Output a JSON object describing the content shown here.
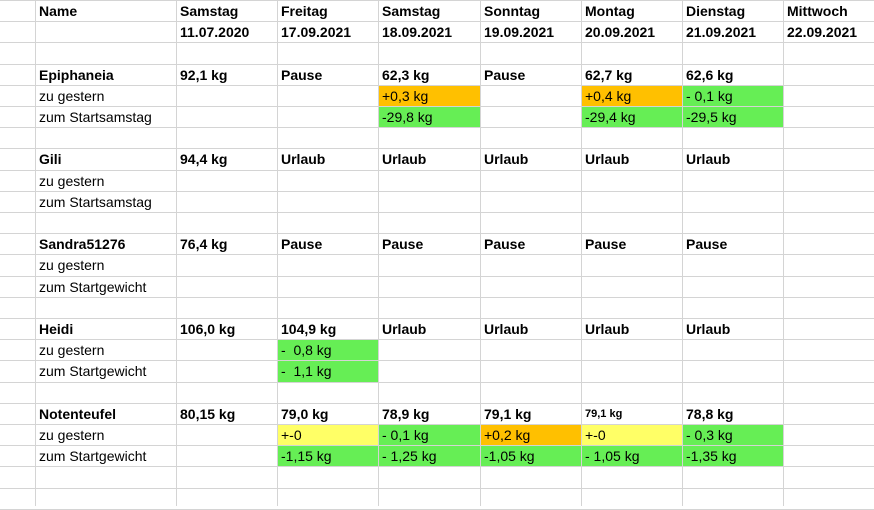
{
  "header": {
    "name": "Name",
    "days": [
      {
        "day": "Samstag",
        "date": "11.07.2020"
      },
      {
        "day": "Freitag",
        "date": "17.09.2021"
      },
      {
        "day": "Samstag",
        "date": "18.09.2021"
      },
      {
        "day": "Sonntag",
        "date": "19.09.2021"
      },
      {
        "day": "Montag",
        "date": "20.09.2021"
      },
      {
        "day": "Dienstag",
        "date": "21.09.2021"
      },
      {
        "day": "Mittwoch",
        "date": "22.09.2021"
      }
    ]
  },
  "colors": {
    "orange": "#ffc000",
    "green": "#66ee55",
    "yellow": "#ffff66",
    "grid": "#d4d4d4"
  },
  "people": [
    {
      "name": "Epiphaneia",
      "weights": [
        "92,1 kg",
        "Pause",
        "62,3 kg",
        "Pause",
        "62,7 kg",
        "62,6 kg",
        ""
      ],
      "rows": [
        {
          "label": "zu gestern",
          "cells": [
            {
              "v": ""
            },
            {
              "v": ""
            },
            {
              "v": "+0,3 kg",
              "c": "orange"
            },
            {
              "v": ""
            },
            {
              "v": "+0,4 kg",
              "c": "orange"
            },
            {
              "v": "- 0,1 kg",
              "c": "green"
            },
            {
              "v": ""
            }
          ]
        },
        {
          "label": "zum Startsamstag",
          "cells": [
            {
              "v": ""
            },
            {
              "v": ""
            },
            {
              "v": "-29,8 kg",
              "c": "green"
            },
            {
              "v": ""
            },
            {
              "v": "-29,4 kg",
              "c": "green"
            },
            {
              "v": "-29,5 kg",
              "c": "green"
            },
            {
              "v": ""
            }
          ]
        }
      ]
    },
    {
      "name": "Gili",
      "weights": [
        "94,4 kg",
        "Urlaub",
        "Urlaub",
        "Urlaub",
        "Urlaub",
        "Urlaub",
        ""
      ],
      "rows": [
        {
          "label": "zu gestern",
          "cells": [
            {
              "v": ""
            },
            {
              "v": ""
            },
            {
              "v": ""
            },
            {
              "v": ""
            },
            {
              "v": ""
            },
            {
              "v": ""
            },
            {
              "v": ""
            }
          ]
        },
        {
          "label": "zum Startsamstag",
          "cells": [
            {
              "v": ""
            },
            {
              "v": ""
            },
            {
              "v": ""
            },
            {
              "v": ""
            },
            {
              "v": ""
            },
            {
              "v": ""
            },
            {
              "v": ""
            }
          ]
        }
      ]
    },
    {
      "name": "Sandra51276",
      "weights": [
        "76,4 kg",
        "Pause",
        "Pause",
        "Pause",
        "Pause",
        "Pause",
        ""
      ],
      "rows": [
        {
          "label": "zu gestern",
          "cells": [
            {
              "v": ""
            },
            {
              "v": ""
            },
            {
              "v": ""
            },
            {
              "v": ""
            },
            {
              "v": ""
            },
            {
              "v": ""
            },
            {
              "v": ""
            }
          ]
        },
        {
          "label": "zum Startgewicht",
          "cells": [
            {
              "v": ""
            },
            {
              "v": ""
            },
            {
              "v": ""
            },
            {
              "v": ""
            },
            {
              "v": ""
            },
            {
              "v": ""
            },
            {
              "v": ""
            }
          ]
        }
      ]
    },
    {
      "name": "Heidi",
      "weights": [
        "106,0 kg",
        "104,9 kg",
        "Urlaub",
        "Urlaub",
        "Urlaub",
        "Urlaub",
        ""
      ],
      "rows": [
        {
          "label": "zu gestern",
          "cells": [
            {
              "v": ""
            },
            {
              "v": "-  0,8 kg",
              "c": "green"
            },
            {
              "v": ""
            },
            {
              "v": ""
            },
            {
              "v": ""
            },
            {
              "v": ""
            },
            {
              "v": ""
            }
          ]
        },
        {
          "label": "zum Startgewicht",
          "cells": [
            {
              "v": ""
            },
            {
              "v": "-  1,1 kg",
              "c": "green"
            },
            {
              "v": ""
            },
            {
              "v": ""
            },
            {
              "v": ""
            },
            {
              "v": ""
            },
            {
              "v": ""
            }
          ]
        }
      ]
    },
    {
      "name": "Notenteufel",
      "weights": [
        "80,15 kg",
        "79,0 kg",
        "78,9 kg",
        "79,1 kg",
        "79,1 kg",
        "78,8 kg",
        ""
      ],
      "small_weight_index": 4,
      "rows": [
        {
          "label": "zu gestern",
          "cells": [
            {
              "v": ""
            },
            {
              "v": "+-0",
              "c": "yellow"
            },
            {
              "v": "- 0,1 kg",
              "c": "green"
            },
            {
              "v": "+0,2 kg",
              "c": "orange"
            },
            {
              "v": "+-0",
              "c": "yellow"
            },
            {
              "v": "- 0,3 kg",
              "c": "green"
            },
            {
              "v": ""
            }
          ]
        },
        {
          "label": "zum Startgewicht",
          "cells": [
            {
              "v": ""
            },
            {
              "v": "-1,15 kg",
              "c": "green"
            },
            {
              "v": "- 1,25 kg",
              "c": "green"
            },
            {
              "v": "-1,05 kg",
              "c": "green"
            },
            {
              "v": "- 1,05 kg",
              "c": "green"
            },
            {
              "v": "-1,35 kg",
              "c": "green"
            },
            {
              "v": ""
            }
          ]
        }
      ]
    }
  ]
}
